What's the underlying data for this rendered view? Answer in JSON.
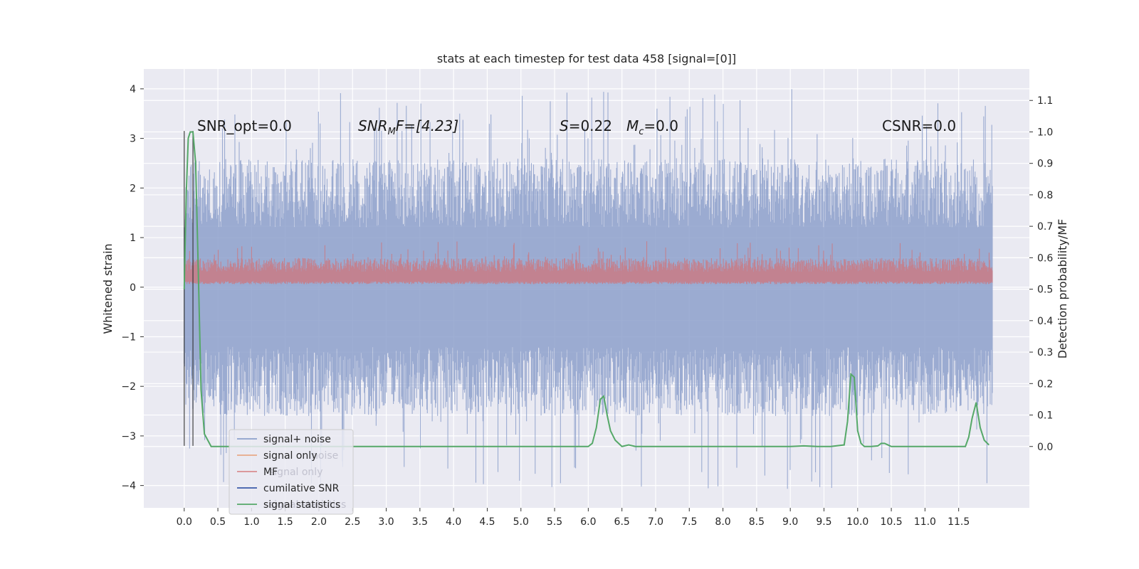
{
  "chart_data": {
    "type": "line",
    "title": "stats at each timestep for test data 458 [signal=[0]]",
    "ylabel": "Whitened strain",
    "ylabel_right": "Detection probability/MF",
    "xlim": [
      -0.6,
      12.55
    ],
    "ylim": [
      -4.45,
      4.4
    ],
    "ylim_right": [
      -0.195,
      1.2
    ],
    "x_ticks": [
      "0.0",
      "0.5",
      "1.0",
      "1.5",
      "2.0",
      "2.5",
      "3.0",
      "3.5",
      "4.0",
      "4.5",
      "5.0",
      "5.5",
      "6.0",
      "6.5",
      "7.0",
      "7.5",
      "8.0",
      "8.5",
      "9.0",
      "9.5",
      "10.0",
      "10.5",
      "11.0",
      "11.5"
    ],
    "y_ticks": [
      "4",
      "3",
      "2",
      "1",
      "0",
      "−1",
      "−2",
      "−3",
      "−4"
    ],
    "y_ticks_right": [
      "1.1",
      "1.0",
      "0.9",
      "0.8",
      "0.7",
      "0.6",
      "0.5",
      "0.4",
      "0.3",
      "0.2",
      "0.1",
      "0.0"
    ],
    "annotations": {
      "snr_opt": "SNR_opt=0.0",
      "snr_mf_base": "SNR",
      "snr_mf_sub": "M",
      "snr_mf_rest": "F=[4.23]",
      "s_var": "S",
      "s_rest": "=0.22",
      "mc_var": "M",
      "mc_sub": "c",
      "mc_rest": "=0.0",
      "csnr": "CSNR=0.0"
    },
    "legend": {
      "placement": "lower-left",
      "entries": [
        {
          "label": "signal+ noise",
          "color": "#8da0cb"
        },
        {
          "label": "signal only",
          "color": "#e8a987"
        },
        {
          "label": "MF",
          "color": "#d98c8f"
        },
        {
          "label": "cumilative SNR",
          "color": "#3b5ba9"
        },
        {
          "label": "signal statistics",
          "color": "#55a868"
        }
      ],
      "ghost_labels": [
        "noise",
        "signal only",
        "signal statistics"
      ]
    },
    "noise_band": {
      "x_start": 0.0,
      "x_end": 12.0,
      "upper_mean": 1.9,
      "lower_mean": -1.9,
      "max": 4.0,
      "min": -4.1,
      "color": "#8da0cb"
    },
    "mf_band": {
      "x_start": 0.0,
      "x_end": 12.0,
      "base": 0.06,
      "top_mean": 0.45,
      "max": 0.93,
      "color": "#c97a85"
    },
    "vertical_lines": [
      0.0,
      0.13
    ],
    "vertical_line_range": [
      -3.2,
      3.15
    ],
    "signal_statistics": {
      "color": "#55a868",
      "x": [
        0.0,
        0.03,
        0.06,
        0.09,
        0.13,
        0.17,
        0.21,
        0.25,
        0.3,
        0.4,
        0.6,
        1.0,
        2.0,
        3.0,
        4.0,
        5.0,
        6.0,
        6.06,
        6.12,
        6.18,
        6.23,
        6.28,
        6.33,
        6.4,
        6.5,
        6.6,
        6.7,
        6.8,
        7.0,
        8.0,
        9.0,
        9.2,
        9.4,
        9.6,
        9.8,
        9.85,
        9.9,
        9.95,
        10.0,
        10.05,
        10.1,
        10.2,
        10.3,
        10.35,
        10.4,
        10.45,
        10.5,
        10.6,
        11.0,
        11.5,
        11.6,
        11.65,
        11.7,
        11.76,
        11.82,
        11.88,
        11.95
      ],
      "y": [
        0.5,
        0.8,
        0.98,
        1.0,
        1.0,
        0.9,
        0.55,
        0.18,
        0.04,
        0.0,
        0.0,
        0.0,
        0.0,
        0.0,
        0.0,
        0.0,
        0.0,
        0.01,
        0.06,
        0.15,
        0.16,
        0.1,
        0.05,
        0.02,
        0.0,
        0.005,
        0.0,
        0.0,
        0.0,
        0.0,
        0.0,
        0.002,
        0.0,
        0.0,
        0.005,
        0.08,
        0.23,
        0.22,
        0.05,
        0.01,
        0.0,
        0.0,
        0.002,
        0.01,
        0.01,
        0.005,
        0.0,
        0.0,
        0.0,
        0.0,
        0.0,
        0.03,
        0.09,
        0.14,
        0.06,
        0.02,
        0.005
      ]
    },
    "colors": {
      "plot_bg": "#eaeaf2",
      "grid": "#ffffff",
      "legend_bg": "#eaeaf2",
      "legend_border": "#cccccc"
    }
  }
}
